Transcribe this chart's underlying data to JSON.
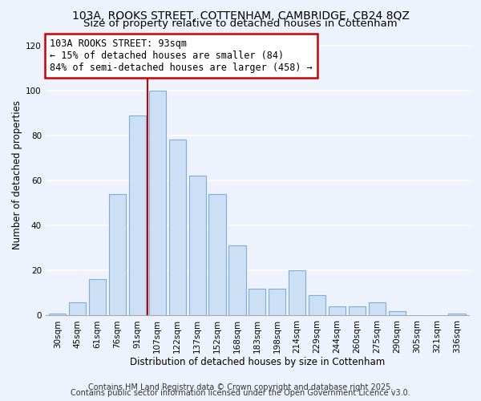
{
  "title1": "103A, ROOKS STREET, COTTENHAM, CAMBRIDGE, CB24 8QZ",
  "title2": "Size of property relative to detached houses in Cottenham",
  "xlabel": "Distribution of detached houses by size in Cottenham",
  "ylabel": "Number of detached properties",
  "bar_labels": [
    "30sqm",
    "45sqm",
    "61sqm",
    "76sqm",
    "91sqm",
    "107sqm",
    "122sqm",
    "137sqm",
    "152sqm",
    "168sqm",
    "183sqm",
    "198sqm",
    "214sqm",
    "229sqm",
    "244sqm",
    "260sqm",
    "275sqm",
    "290sqm",
    "305sqm",
    "321sqm",
    "336sqm"
  ],
  "bar_values": [
    1,
    6,
    16,
    54,
    89,
    100,
    78,
    62,
    54,
    31,
    12,
    12,
    20,
    9,
    4,
    4,
    6,
    2,
    0,
    0,
    1
  ],
  "bar_color": "#ccdff5",
  "bar_edge_color": "#7ab0e0",
  "vline_x_index": 4.5,
  "vline_color": "#cc0000",
  "annotation_title": "103A ROOKS STREET: 93sqm",
  "annotation_line1": "← 15% of detached houses are smaller (84)",
  "annotation_line2": "84% of semi-detached houses are larger (458) →",
  "ylim": [
    0,
    125
  ],
  "yticks": [
    0,
    20,
    40,
    60,
    80,
    100,
    120
  ],
  "footer1": "Contains HM Land Registry data © Crown copyright and database right 2025.",
  "footer2": "Contains public sector information licensed under the Open Government Licence v3.0.",
  "background_color": "#eef2fc",
  "grid_color": "#ffffff",
  "title_fontsize": 10,
  "subtitle_fontsize": 9.5,
  "axis_label_fontsize": 8.5,
  "tick_fontsize": 7.5,
  "annot_fontsize": 8.5,
  "footer_fontsize": 7
}
